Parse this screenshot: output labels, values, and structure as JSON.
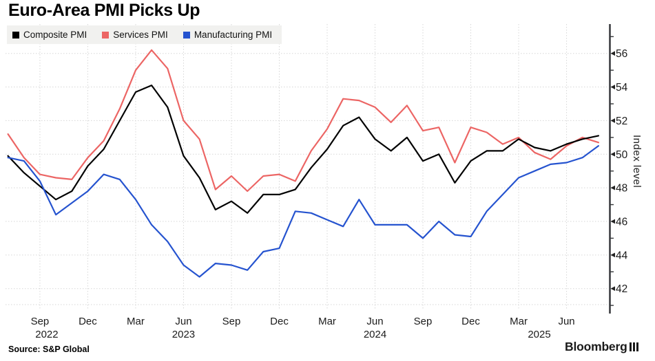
{
  "title": "Euro-Area PMI Picks Up",
  "source": "Source: S&P Global",
  "logo": "Bloomberg",
  "legend": [
    {
      "label": "Composite PMI",
      "color": "#000000"
    },
    {
      "label": "Services PMI",
      "color": "#ec6564"
    },
    {
      "label": "Manufacturing PMI",
      "color": "#2553cf"
    }
  ],
  "colors": {
    "composite": "#000000",
    "services": "#ec6564",
    "manufacturing": "#2553cf",
    "grid": "#d6d6d6",
    "axis_spine": "#35373a",
    "tick_label": "#1b1b1b",
    "legend_bg": "#f0f0ee"
  },
  "chart_data": {
    "type": "line",
    "title": "Euro-Area PMI Picks Up",
    "xlabel": "",
    "ylabel": "Index level",
    "ylim": [
      40.6,
      57.8
    ],
    "yticks_major": [
      42,
      44,
      46,
      48,
      50,
      52,
      54,
      56
    ],
    "yticks_minor_step": 1,
    "grid": "dotted, horizontal at major yticks and vertical at quarterly xticks",
    "legend_position": "top-left",
    "x": [
      "Jul 2022",
      "Aug 2022",
      "Sep 2022",
      "Oct 2022",
      "Nov 2022",
      "Dec 2022",
      "Jan 2023",
      "Feb 2023",
      "Mar 2023",
      "Apr 2023",
      "May 2023",
      "Jun 2023",
      "Jul 2023",
      "Aug 2023",
      "Sep 2023",
      "Oct 2023",
      "Nov 2023",
      "Dec 2023",
      "Jan 2024",
      "Feb 2024",
      "Mar 2024",
      "Apr 2024",
      "May 2024",
      "Jun 2024",
      "Jul 2024",
      "Aug 2024",
      "Sep 2024",
      "Oct 2024",
      "Nov 2024",
      "Dec 2024",
      "Jan 2025",
      "Feb 2025",
      "Mar 2025",
      "Apr 2025",
      "May 2025",
      "Jun 2025",
      "Jul 2025",
      "Aug 2025"
    ],
    "xticks": [
      {
        "i": 2,
        "label": "Sep",
        "year": "2022",
        "year_dx": 10
      },
      {
        "i": 5,
        "label": "Dec"
      },
      {
        "i": 8,
        "label": "Mar"
      },
      {
        "i": 11,
        "label": "Jun",
        "year": "2023",
        "year_dx": 0
      },
      {
        "i": 14,
        "label": "Sep"
      },
      {
        "i": 17,
        "label": "Dec"
      },
      {
        "i": 20,
        "label": "Mar"
      },
      {
        "i": 23,
        "label": "Jun",
        "year": "2024",
        "year_dx": 0
      },
      {
        "i": 26,
        "label": "Sep"
      },
      {
        "i": 29,
        "label": "Dec"
      },
      {
        "i": 32,
        "label": "Mar",
        "year": "2025",
        "year_dx": 30
      },
      {
        "i": 35,
        "label": "Jun"
      }
    ],
    "series": [
      {
        "name": "Composite PMI",
        "color": "#000000",
        "values": [
          49.9,
          48.9,
          48.1,
          47.3,
          47.8,
          49.3,
          50.3,
          52.0,
          53.7,
          54.1,
          52.8,
          49.9,
          48.6,
          46.7,
          47.2,
          46.5,
          47.6,
          47.6,
          47.9,
          49.2,
          50.3,
          51.7,
          52.2,
          50.9,
          50.2,
          51.0,
          49.6,
          50.0,
          48.3,
          49.6,
          50.2,
          50.2,
          50.9,
          50.4,
          50.2,
          50.6,
          50.9,
          51.1
        ]
      },
      {
        "name": "Services PMI",
        "color": "#ec6564",
        "values": [
          51.2,
          49.8,
          48.8,
          48.6,
          48.5,
          49.8,
          50.8,
          52.7,
          55.0,
          56.2,
          55.1,
          52.0,
          50.9,
          47.9,
          48.7,
          47.8,
          48.7,
          48.8,
          48.4,
          50.2,
          51.5,
          53.3,
          53.2,
          52.8,
          51.9,
          52.9,
          51.4,
          51.6,
          49.5,
          51.6,
          51.3,
          50.6,
          51.0,
          50.1,
          49.7,
          50.5,
          51.0,
          50.7
        ]
      },
      {
        "name": "Manufacturing PMI",
        "color": "#2553cf",
        "values": [
          49.8,
          49.6,
          48.4,
          46.4,
          47.1,
          47.8,
          48.8,
          48.5,
          47.3,
          45.8,
          44.8,
          43.4,
          42.7,
          43.5,
          43.4,
          43.1,
          44.2,
          44.4,
          46.6,
          46.5,
          46.1,
          45.7,
          47.3,
          45.8,
          45.8,
          45.8,
          45.0,
          46.0,
          45.2,
          45.1,
          46.6,
          47.6,
          48.6,
          49.0,
          49.4,
          49.5,
          49.8,
          50.5
        ]
      }
    ]
  }
}
